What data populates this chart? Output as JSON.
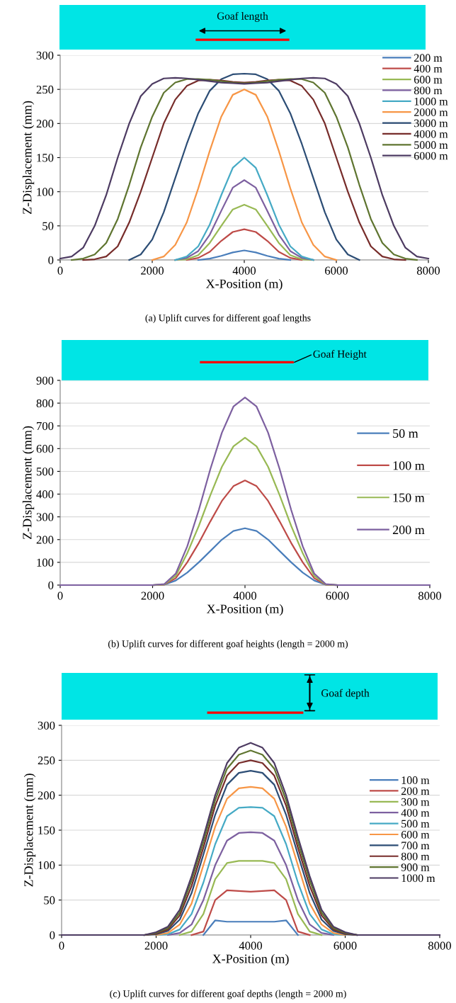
{
  "chart_data": [
    {
      "type": "line",
      "xlabel": "X-Position (m)",
      "ylabel": "Z-Displacement (mm)",
      "annotations": [
        "Goaf length",
        "(a) Uplift curves for different goaf lengths"
      ],
      "xlim": [
        0,
        8000
      ],
      "xticks": [
        0,
        2000,
        4000,
        6000,
        8000
      ],
      "ylim": [
        0,
        300
      ],
      "yticks": [
        0,
        50,
        100,
        150,
        200,
        250,
        300
      ],
      "grid": "y",
      "legend": "top right",
      "marker": "none",
      "line_style": "solid",
      "x": [
        0,
        250,
        500,
        750,
        1000,
        1250,
        1500,
        1750,
        2000,
        2250,
        2500,
        2750,
        3000,
        3250,
        3500,
        3750,
        4000,
        4250,
        4500,
        4750,
        5000,
        5250,
        5500,
        5750,
        6000,
        6250,
        6500,
        6750,
        7000,
        7250,
        7500,
        7750,
        8000
      ],
      "series": [
        {
          "name": "200 m",
          "color": "#4a7ebb",
          "values": [
            null,
            null,
            null,
            null,
            null,
            null,
            null,
            null,
            null,
            null,
            null,
            null,
            0,
            2,
            6,
            11,
            14,
            11,
            6,
            2,
            0,
            null,
            null,
            null,
            null,
            null,
            null,
            null,
            null,
            null,
            null,
            null,
            null
          ]
        },
        {
          "name": "400 m",
          "color": "#be4b48",
          "values": [
            null,
            null,
            null,
            null,
            null,
            null,
            null,
            null,
            null,
            null,
            null,
            0,
            3,
            12,
            28,
            41,
            45,
            41,
            28,
            12,
            3,
            0,
            null,
            null,
            null,
            null,
            null,
            null,
            null,
            null,
            null,
            null,
            null
          ]
        },
        {
          "name": "600 m",
          "color": "#98b954",
          "values": [
            null,
            null,
            null,
            null,
            null,
            null,
            null,
            null,
            null,
            null,
            0,
            1,
            7,
            25,
            50,
            74,
            81,
            74,
            50,
            25,
            7,
            1,
            0,
            null,
            null,
            null,
            null,
            null,
            null,
            null,
            null,
            null,
            null
          ]
        },
        {
          "name": "800 m",
          "color": "#7d60a0",
          "values": [
            null,
            null,
            null,
            null,
            null,
            null,
            null,
            null,
            null,
            null,
            0,
            3,
            13,
            37,
            72,
            106,
            117,
            106,
            72,
            37,
            13,
            3,
            0,
            null,
            null,
            null,
            null,
            null,
            null,
            null,
            null,
            null,
            null
          ]
        },
        {
          "name": "1000 m",
          "color": "#46aac5",
          "values": [
            null,
            null,
            null,
            null,
            null,
            null,
            null,
            null,
            null,
            null,
            0,
            5,
            20,
            52,
            95,
            135,
            150,
            135,
            95,
            52,
            20,
            5,
            0,
            null,
            null,
            null,
            null,
            null,
            null,
            null,
            null,
            null,
            null
          ]
        },
        {
          "name": "2000 m",
          "color": "#f79646",
          "values": [
            null,
            null,
            null,
            null,
            null,
            null,
            null,
            null,
            0,
            5,
            22,
            55,
            105,
            160,
            210,
            242,
            250,
            242,
            210,
            160,
            105,
            55,
            22,
            5,
            0,
            null,
            null,
            null,
            null,
            null,
            null,
            null,
            null
          ]
        },
        {
          "name": "3000 m",
          "color": "#2c4d75",
          "values": [
            null,
            null,
            null,
            null,
            null,
            null,
            0,
            8,
            30,
            70,
            120,
            170,
            215,
            248,
            265,
            272,
            273,
            272,
            265,
            248,
            215,
            170,
            120,
            70,
            30,
            8,
            0,
            null,
            null,
            null,
            null,
            null,
            null
          ]
        },
        {
          "name": "4000 m",
          "color": "#772c2a",
          "values": [
            null,
            null,
            0,
            1,
            5,
            20,
            55,
            100,
            150,
            200,
            235,
            255,
            263,
            264,
            263,
            261,
            260,
            261,
            263,
            264,
            263,
            255,
            235,
            200,
            150,
            100,
            55,
            20,
            5,
            1,
            0,
            null,
            null
          ]
        },
        {
          "name": "5000 m",
          "color": "#5f7530",
          "values": [
            null,
            0,
            2,
            8,
            25,
            60,
            110,
            165,
            210,
            245,
            260,
            265,
            265,
            264,
            262,
            260,
            259,
            260,
            262,
            264,
            265,
            265,
            260,
            245,
            210,
            165,
            110,
            60,
            25,
            8,
            2,
            0,
            null
          ]
        },
        {
          "name": "6000 m",
          "color": "#4d3b62",
          "values": [
            2,
            5,
            18,
            50,
            95,
            150,
            200,
            240,
            258,
            266,
            267,
            266,
            264,
            262,
            260,
            259,
            258,
            259,
            260,
            262,
            264,
            266,
            267,
            266,
            258,
            240,
            200,
            150,
            95,
            50,
            18,
            5,
            2
          ]
        }
      ]
    },
    {
      "type": "line",
      "xlabel": "X-Position (m)",
      "ylabel": "Z-Displacement (mm)",
      "annotations": [
        "Goaf Height",
        "(b) Uplift curves for different goaf heights (length = 2000 m)"
      ],
      "xlim": [
        0,
        8000
      ],
      "xticks": [
        0,
        2000,
        4000,
        6000,
        8000
      ],
      "ylim": [
        0,
        900
      ],
      "yticks": [
        0,
        100,
        200,
        300,
        400,
        500,
        600,
        700,
        800,
        900
      ],
      "grid": "y",
      "legend": "right",
      "marker": "none",
      "line_style": "solid",
      "x": [
        0,
        250,
        500,
        750,
        1000,
        1250,
        1500,
        1750,
        2000,
        2250,
        2500,
        2750,
        3000,
        3250,
        3500,
        3750,
        4000,
        4250,
        4500,
        4750,
        5000,
        5250,
        5500,
        5750,
        6000,
        6250,
        6500,
        6750,
        7000,
        7250,
        7500,
        7750,
        8000
      ],
      "series": [
        {
          "name": "50 m",
          "color": "#4a7ebb",
          "values": [
            null,
            null,
            null,
            null,
            null,
            null,
            null,
            null,
            0,
            2,
            20,
            55,
            100,
            150,
            200,
            238,
            250,
            238,
            200,
            150,
            100,
            55,
            20,
            2,
            0,
            null,
            null,
            null,
            null,
            null,
            null,
            null,
            null
          ]
        },
        {
          "name": "100 m",
          "color": "#be4b48",
          "values": [
            null,
            null,
            null,
            null,
            null,
            null,
            null,
            null,
            0,
            2,
            30,
            100,
            185,
            280,
            370,
            435,
            460,
            435,
            370,
            280,
            185,
            100,
            30,
            2,
            0,
            null,
            null,
            null,
            null,
            null,
            null,
            null,
            null
          ]
        },
        {
          "name": "150 m",
          "color": "#98b954",
          "values": [
            null,
            null,
            null,
            null,
            null,
            null,
            null,
            null,
            0,
            3,
            40,
            140,
            260,
            395,
            520,
            610,
            648,
            610,
            520,
            395,
            260,
            140,
            40,
            3,
            0,
            null,
            null,
            null,
            null,
            null,
            null,
            null,
            null
          ]
        },
        {
          "name": "200 m",
          "color": "#7d60a0",
          "values": [
            0,
            0,
            0,
            0,
            0,
            0,
            0,
            0,
            0,
            4,
            50,
            170,
            330,
            510,
            670,
            785,
            825,
            785,
            670,
            510,
            330,
            170,
            50,
            4,
            0,
            0,
            0,
            0,
            0,
            0,
            0,
            0,
            0
          ]
        }
      ]
    },
    {
      "type": "line",
      "xlabel": "X-Position (m)",
      "ylabel": "Z-Displacement (mm)",
      "annotations": [
        "Goaf depth",
        "(c) Uplift curves for different goaf depths (length = 2000 m)"
      ],
      "xlim": [
        0,
        8000
      ],
      "xticks": [
        0,
        2000,
        4000,
        6000,
        8000
      ],
      "ylim": [
        0,
        300
      ],
      "yticks": [
        0,
        50,
        100,
        150,
        200,
        250,
        300
      ],
      "grid": "y",
      "legend": "right",
      "marker": "none",
      "line_style": "solid",
      "x": [
        0,
        250,
        500,
        750,
        1000,
        1250,
        1500,
        1750,
        2000,
        2250,
        2500,
        2750,
        3000,
        3250,
        3500,
        3750,
        4000,
        4250,
        4500,
        4750,
        5000,
        5250,
        5500,
        5750,
        6000,
        6250,
        6500,
        6750,
        7000,
        7250,
        7500,
        7750,
        8000
      ],
      "series": [
        {
          "name": "100 m",
          "color": "#4a7ebb",
          "values": [
            null,
            null,
            null,
            null,
            null,
            null,
            null,
            null,
            null,
            null,
            null,
            null,
            0,
            21,
            19,
            19,
            19,
            19,
            19,
            21,
            0,
            null,
            null,
            null,
            null,
            null,
            null,
            null,
            null,
            null,
            null,
            null,
            null
          ]
        },
        {
          "name": "200 m",
          "color": "#be4b48",
          "values": [
            null,
            null,
            null,
            null,
            null,
            null,
            null,
            null,
            null,
            null,
            null,
            0,
            5,
            50,
            64,
            63,
            62,
            63,
            64,
            50,
            5,
            0,
            null,
            null,
            null,
            null,
            null,
            null,
            null,
            null,
            null,
            null,
            null
          ]
        },
        {
          "name": "300 m",
          "color": "#98b954",
          "values": [
            null,
            null,
            null,
            null,
            null,
            null,
            null,
            null,
            null,
            null,
            0,
            5,
            30,
            80,
            103,
            106,
            106,
            106,
            103,
            80,
            30,
            5,
            0,
            null,
            null,
            null,
            null,
            null,
            null,
            null,
            null,
            null,
            null
          ]
        },
        {
          "name": "400 m",
          "color": "#7d60a0",
          "values": [
            null,
            null,
            null,
            null,
            null,
            null,
            null,
            null,
            null,
            0,
            3,
            15,
            50,
            100,
            135,
            146,
            147,
            146,
            135,
            100,
            50,
            15,
            3,
            0,
            null,
            null,
            null,
            null,
            null,
            null,
            null,
            null,
            null
          ]
        },
        {
          "name": "500 m",
          "color": "#46aac5",
          "values": [
            null,
            null,
            null,
            null,
            null,
            null,
            null,
            null,
            0,
            1,
            8,
            30,
            75,
            130,
            170,
            182,
            183,
            182,
            170,
            130,
            75,
            30,
            8,
            1,
            0,
            null,
            null,
            null,
            null,
            null,
            null,
            null,
            null
          ]
        },
        {
          "name": "600 m",
          "color": "#f79646",
          "values": [
            null,
            null,
            null,
            null,
            null,
            null,
            null,
            null,
            0,
            3,
            15,
            45,
            100,
            155,
            195,
            210,
            212,
            210,
            195,
            155,
            100,
            45,
            15,
            3,
            0,
            null,
            null,
            null,
            null,
            null,
            null,
            null,
            null
          ]
        },
        {
          "name": "700 m",
          "color": "#2c4d75",
          "values": [
            null,
            null,
            null,
            null,
            null,
            null,
            null,
            0,
            1,
            6,
            22,
            60,
            115,
            172,
            215,
            232,
            235,
            232,
            215,
            172,
            115,
            60,
            22,
            6,
            1,
            0,
            null,
            null,
            null,
            null,
            null,
            null,
            null
          ]
        },
        {
          "name": "800 m",
          "color": "#772c2a",
          "values": [
            null,
            null,
            null,
            null,
            null,
            null,
            null,
            0,
            2,
            8,
            28,
            70,
            125,
            185,
            228,
            246,
            250,
            246,
            228,
            185,
            125,
            70,
            28,
            8,
            2,
            0,
            null,
            null,
            null,
            null,
            null,
            null,
            null
          ]
        },
        {
          "name": "900 m",
          "color": "#5f7530",
          "values": [
            null,
            null,
            null,
            null,
            null,
            null,
            null,
            0,
            3,
            10,
            32,
            78,
            133,
            193,
            238,
            258,
            264,
            258,
            238,
            193,
            133,
            78,
            32,
            10,
            3,
            0,
            null,
            null,
            null,
            null,
            null,
            null,
            null
          ]
        },
        {
          "name": "1000 m",
          "color": "#4d3b62",
          "values": [
            0,
            0,
            0,
            0,
            0,
            0,
            0,
            0,
            4,
            12,
            36,
            84,
            140,
            200,
            246,
            268,
            275,
            268,
            246,
            200,
            140,
            84,
            36,
            12,
            4,
            0,
            0,
            0,
            0,
            0,
            0,
            0,
            0
          ]
        }
      ]
    }
  ]
}
